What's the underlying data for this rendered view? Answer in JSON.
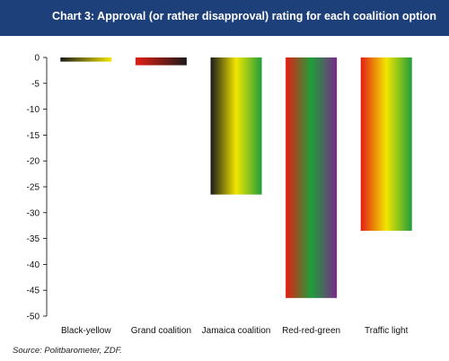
{
  "header": {
    "title": "Chart 3: Approval (or rather disapproval) rating for each coalition option",
    "background": "#1d3f7a"
  },
  "chart_data": {
    "type": "bar",
    "categories": [
      "Black-yellow",
      "Grand coalition",
      "Jamaica coalition",
      "Red-red-green",
      "Traffic light"
    ],
    "values": [
      -0.8,
      -1.5,
      -26.5,
      -46.5,
      -33.5
    ],
    "series_colors": [
      [
        "#1a1a1a",
        "#f2e600"
      ],
      [
        "#e31e14",
        "#1a1a1a"
      ],
      [
        "#1a1a1a",
        "#f2e600",
        "#1f9e3a"
      ],
      [
        "#e31e14",
        "#1f9e3a",
        "#7a2a8a"
      ],
      [
        "#e31e14",
        "#f2e600",
        "#1f9e3a"
      ]
    ],
    "ylim": [
      -50,
      0
    ],
    "yticks": [
      0,
      -5,
      -10,
      -15,
      -20,
      -25,
      -30,
      -35,
      -40,
      -45,
      -50
    ],
    "ytick_labels": [
      "0",
      "-5",
      "-10",
      "-15",
      "-20",
      "-25",
      "-30",
      "-35",
      "-40",
      "-45",
      "-50"
    ],
    "grid": false,
    "legend": "none"
  },
  "source": "Source: Politbarometer, ZDF."
}
